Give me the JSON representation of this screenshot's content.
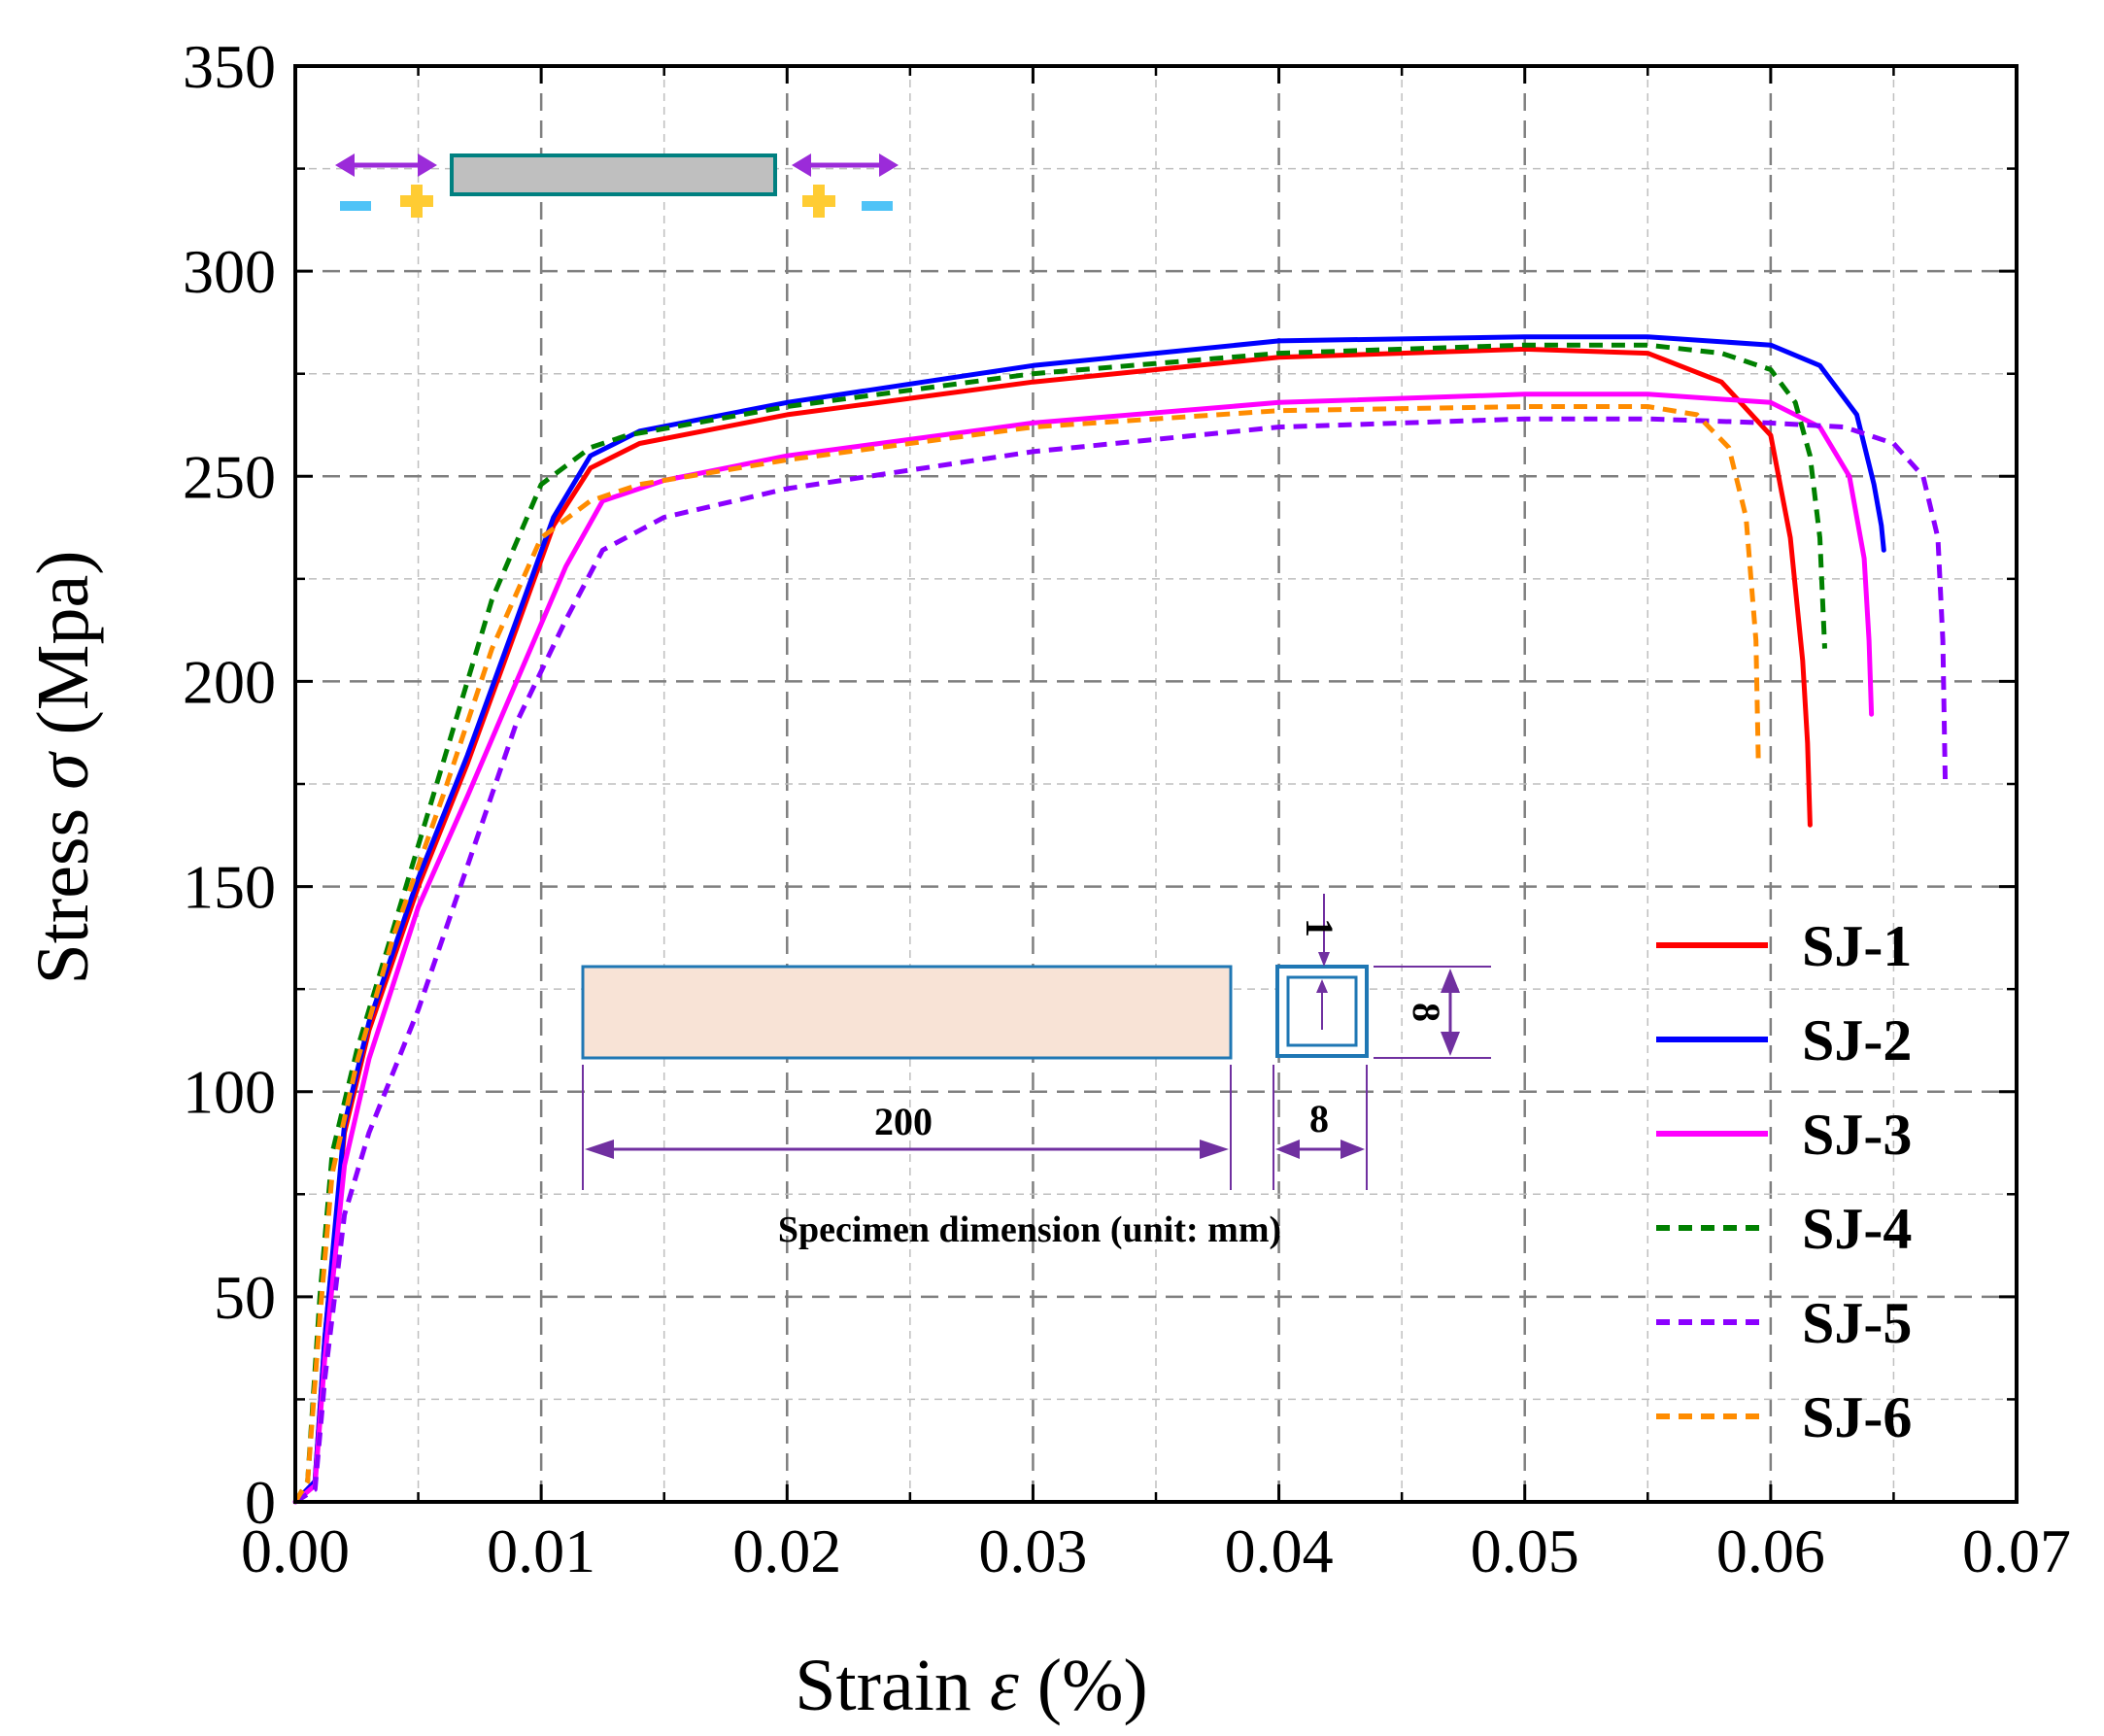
{
  "chart_data": {
    "type": "line",
    "xlabel_prefix": "Strain ",
    "xlabel_symbol": "ε",
    "xlabel_suffix": "  (%)",
    "ylabel_prefix": "Stress ",
    "ylabel_symbol": "σ",
    "ylabel_suffix": " (Mpa)",
    "xlim": [
      0,
      0.07
    ],
    "ylim": [
      0,
      350
    ],
    "xticks": [
      0,
      0.01,
      0.02,
      0.03,
      0.04,
      0.05,
      0.06,
      0.07
    ],
    "xtick_labels": [
      "0.00",
      "0.01",
      "0.02",
      "0.03",
      "0.04",
      "0.05",
      "0.06",
      "0.07"
    ],
    "yticks": [
      0,
      50,
      100,
      150,
      200,
      250,
      300,
      350
    ],
    "ytick_labels": [
      "0",
      "50",
      "100",
      "150",
      "200",
      "250",
      "300",
      "350"
    ],
    "grid": true,
    "legend_position": "right",
    "series": [
      {
        "name": "SJ-1",
        "color": "#ff0000",
        "style": "solid",
        "x": [
          0,
          0.0008,
          0.0012,
          0.002,
          0.003,
          0.005,
          0.007,
          0.009,
          0.0105,
          0.012,
          0.014,
          0.02,
          0.03,
          0.04,
          0.05,
          0.055,
          0.058,
          0.06,
          0.0608,
          0.0613,
          0.0615,
          0.0616
        ],
        "y": [
          0,
          5,
          40,
          90,
          115,
          150,
          180,
          213,
          238,
          252,
          258,
          265,
          273,
          279,
          281,
          280,
          273,
          260,
          235,
          205,
          185,
          165
        ]
      },
      {
        "name": "SJ-2",
        "color": "#0000ff",
        "style": "solid",
        "x": [
          0,
          0.0008,
          0.0012,
          0.002,
          0.003,
          0.005,
          0.007,
          0.009,
          0.0105,
          0.012,
          0.014,
          0.02,
          0.03,
          0.04,
          0.05,
          0.055,
          0.06,
          0.062,
          0.0635,
          0.0642,
          0.0645,
          0.0646
        ],
        "y": [
          0,
          5,
          40,
          92,
          117,
          152,
          182,
          215,
          240,
          255,
          261,
          268,
          277,
          283,
          284,
          284,
          282,
          277,
          265,
          248,
          238,
          232
        ]
      },
      {
        "name": "SJ-3",
        "color": "#ff00ff",
        "style": "solid",
        "x": [
          0,
          0.0008,
          0.0012,
          0.002,
          0.003,
          0.005,
          0.007,
          0.009,
          0.011,
          0.0125,
          0.015,
          0.02,
          0.03,
          0.04,
          0.05,
          0.055,
          0.06,
          0.062,
          0.0632,
          0.0638,
          0.064,
          0.0641
        ],
        "y": [
          0,
          4,
          35,
          82,
          108,
          145,
          172,
          200,
          228,
          244,
          249,
          255,
          263,
          268,
          270,
          270,
          268,
          262,
          250,
          230,
          210,
          192
        ]
      },
      {
        "name": "SJ-4",
        "color": "#008000",
        "style": "dashed",
        "x": [
          0,
          0.0005,
          0.001,
          0.0015,
          0.0025,
          0.004,
          0.006,
          0.008,
          0.01,
          0.012,
          0.0135,
          0.02,
          0.03,
          0.04,
          0.05,
          0.055,
          0.058,
          0.06,
          0.061,
          0.0616,
          0.062,
          0.0622
        ],
        "y": [
          0,
          5,
          50,
          85,
          110,
          140,
          180,
          220,
          248,
          257,
          260,
          267,
          275,
          280,
          282,
          282,
          280,
          276,
          268,
          255,
          235,
          208
        ]
      },
      {
        "name": "SJ-5",
        "color": "#8b00ff",
        "style": "dashed",
        "x": [
          0,
          0.0008,
          0.0012,
          0.002,
          0.003,
          0.005,
          0.007,
          0.009,
          0.011,
          0.0125,
          0.015,
          0.02,
          0.03,
          0.04,
          0.05,
          0.055,
          0.06,
          0.063,
          0.065,
          0.0662,
          0.0668,
          0.067,
          0.0671
        ],
        "y": [
          0,
          3,
          30,
          70,
          90,
          120,
          155,
          190,
          215,
          232,
          240,
          247,
          256,
          262,
          264,
          264,
          263,
          262,
          258,
          250,
          235,
          210,
          175
        ]
      },
      {
        "name": "SJ-6",
        "color": "#ff8c00",
        "style": "dashed",
        "x": [
          0,
          0.0005,
          0.001,
          0.0015,
          0.0025,
          0.004,
          0.006,
          0.008,
          0.01,
          0.012,
          0.014,
          0.02,
          0.03,
          0.04,
          0.05,
          0.055,
          0.057,
          0.0583,
          0.059,
          0.0594,
          0.0595
        ],
        "y": [
          0,
          5,
          45,
          80,
          107,
          138,
          172,
          208,
          235,
          244,
          248,
          254,
          262,
          266,
          267,
          267,
          265,
          257,
          240,
          210,
          180
        ]
      }
    ],
    "inset": {
      "length_label": "200",
      "width_label": "8",
      "height_label": "8",
      "thickness_label": "1",
      "caption": "Specimen dimension (unit: mm)",
      "colors": {
        "bar_fill": "#f8e3d6",
        "bar_stroke": "#1f77b4",
        "dim_line": "#7030a0"
      }
    },
    "load_icon": {
      "colors": {
        "arrow": "#9b2bd9",
        "specimen_fill": "#bfbfbf",
        "specimen_stroke": "#008080",
        "minus": "#4fc3f7",
        "plus": "#ffcc33"
      }
    }
  }
}
